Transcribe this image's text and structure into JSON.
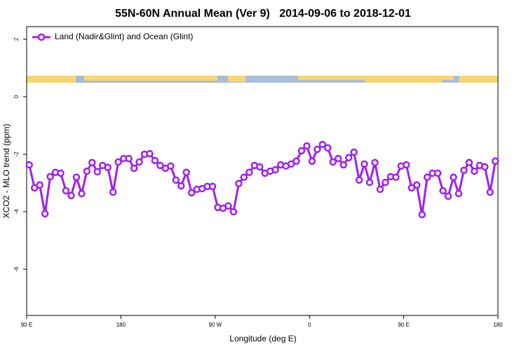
{
  "chart_data": {
    "type": "line",
    "title": "55N-60N Annual Mean (Ver 9)   2014-09-06 to 2018-12-01",
    "x_label": "Longitude (deg E)",
    "y_label": "XCO2 - MLO trend (ppm)",
    "x": [
      92.5,
      97.5,
      102.5,
      107.5,
      112.5,
      117.5,
      122.5,
      127.5,
      132.5,
      137.5,
      142.5,
      147.5,
      152.5,
      157.5,
      162.5,
      167.5,
      172.5,
      177.5,
      182.5,
      187.5,
      192.5,
      197.5,
      202.5,
      207.5,
      212.5,
      217.5,
      222.5,
      227.5,
      232.5,
      237.5,
      242.5,
      247.5,
      252.5,
      257.5,
      262.5,
      267.5,
      272.5,
      277.5,
      282.5,
      287.5,
      292.5,
      297.5,
      302.5,
      307.5,
      312.5,
      317.5,
      322.5,
      327.5,
      332.5,
      337.5,
      342.5,
      347.5,
      352.5,
      357.5,
      362.5,
      367.5,
      372.5,
      377.5,
      382.5,
      387.5,
      392.5,
      397.5,
      402.5,
      407.5,
      412.5,
      417.5,
      422.5,
      427.5,
      432.5,
      437.5,
      442.5,
      447.5,
      452.5,
      457.5,
      462.5,
      467.5,
      472.5,
      477.5,
      482.5,
      487.5,
      492.5,
      497.5,
      502.5,
      507.5,
      512.5,
      517.5,
      522.5,
      527.5,
      532.5,
      537.5
    ],
    "series": [
      {
        "name": "Land (Nadir&Glint) and Ocean (Glint)",
        "color": "#a020f0",
        "values": [
          -2.37,
          -3.17,
          -3.07,
          -4.07,
          -2.78,
          -2.63,
          -2.66,
          -3.27,
          -3.44,
          -2.8,
          -3.37,
          -2.59,
          -2.29,
          -2.61,
          -2.39,
          -2.46,
          -3.32,
          -2.27,
          -2.15,
          -2.15,
          -2.49,
          -2.27,
          -2.0,
          -1.98,
          -2.22,
          -2.39,
          -2.49,
          -2.41,
          -2.9,
          -3.1,
          -2.63,
          -3.34,
          -3.22,
          -3.2,
          -3.12,
          -3.12,
          -3.85,
          -3.88,
          -3.8,
          -4.0,
          -3.02,
          -2.8,
          -2.63,
          -2.39,
          -2.44,
          -2.66,
          -2.59,
          -2.54,
          -2.37,
          -2.41,
          -2.34,
          -2.24,
          -1.88,
          -1.71,
          -2.24,
          -1.83,
          -1.66,
          -1.78,
          -2.27,
          -2.15,
          -2.37,
          -2.12,
          -1.93,
          -2.9,
          -2.34,
          -2.98,
          -2.29,
          -3.22,
          -2.98,
          -2.78,
          -2.8,
          -2.41,
          -2.37,
          -3.17,
          -3.07,
          -4.1,
          -2.8,
          -2.66,
          -2.66,
          -3.27,
          -3.46,
          -2.8,
          -3.37,
          -2.56,
          -2.29,
          -2.59,
          -2.39,
          -2.44,
          -3.32,
          -2.24
        ]
      }
    ],
    "xlim": [
      90,
      540
    ],
    "xticks": [
      {
        "value": 90,
        "label": "90 E"
      },
      180,
      {
        "value": 270,
        "label": "90 W"
      },
      {
        "value": 360,
        "label": "0"
      },
      {
        "value": 450,
        "label": "90 E"
      },
      {
        "value": 540,
        "label": "180"
      }
    ],
    "ylim": [
      -7.61,
      2.44
    ],
    "yticks": [
      2,
      0,
      -2,
      -4,
      -6
    ],
    "legend": "top-left"
  }
}
